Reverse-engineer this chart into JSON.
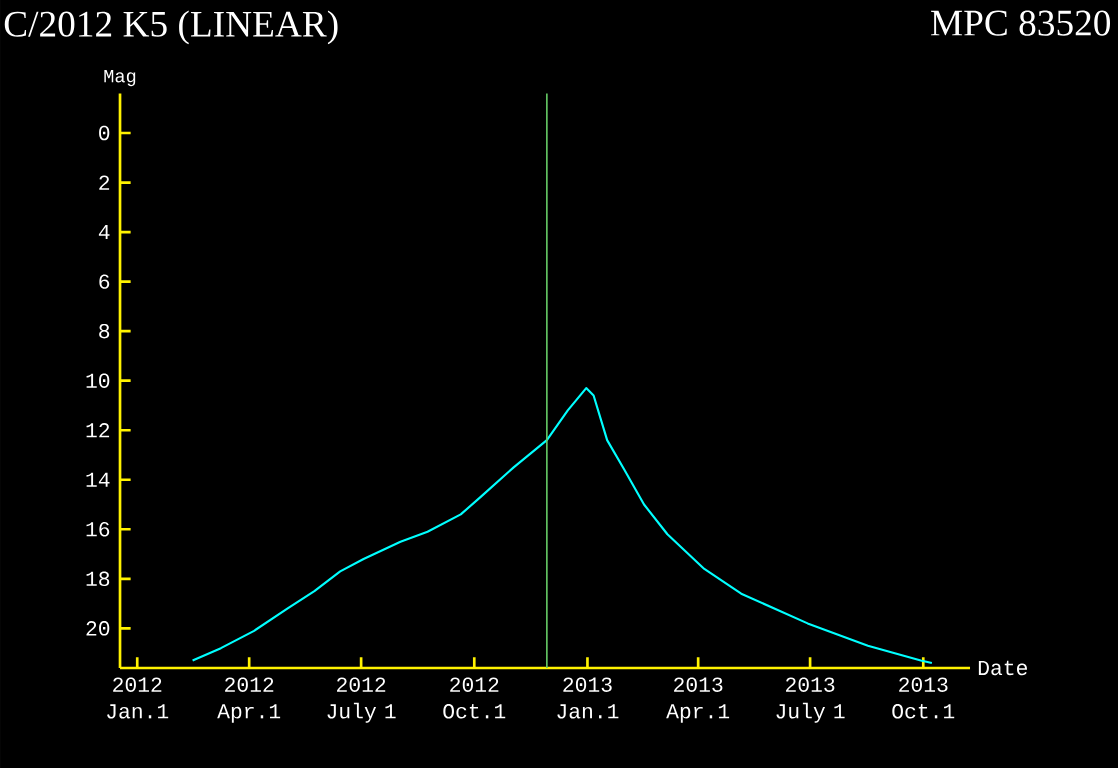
{
  "chart_data": {
    "type": "line",
    "title": "C/2012 K5 (LINEAR)",
    "subtitle": "MPC 83520",
    "xlabel": "Date",
    "ylabel": "Mag",
    "x": [
      "2012-02-15",
      "2012-03-09",
      "2012-04-05",
      "2012-05-02",
      "2012-05-24",
      "2012-06-14",
      "2012-07-03",
      "2012-08-02",
      "2012-08-24",
      "2012-09-20",
      "2012-10-06",
      "2012-11-02",
      "2012-11-29",
      "2012-12-16",
      "2012-12-31",
      "2013-01-06",
      "2013-01-17",
      "2013-01-31",
      "2013-02-16",
      "2013-03-07",
      "2013-04-06",
      "2013-05-06",
      "2013-06-29",
      "2013-08-17",
      "2013-09-29",
      "2013-10-08"
    ],
    "series": [
      {
        "color": "#00ffff",
        "values": [
          21.3,
          20.8,
          20.1,
          19.2,
          18.5,
          17.7,
          17.2,
          16.5,
          16.1,
          15.4,
          14.7,
          13.5,
          12.4,
          11.2,
          10.3,
          10.6,
          12.4,
          13.6,
          15.0,
          16.2,
          17.6,
          18.6,
          19.8,
          20.7,
          21.3,
          21.4
        ]
      }
    ],
    "xlim": [
      "2011-12-18",
      "2013-11-08"
    ],
    "xticks": [
      {
        "value": "2012-01-01",
        "label": "2012 Jan.1"
      },
      {
        "value": "2012-04-01",
        "label": "2012 Apr.1"
      },
      {
        "value": "2012-07-01",
        "label": "2012 July 1"
      },
      {
        "value": "2012-10-01",
        "label": "2012 Oct.1"
      },
      {
        "value": "2013-01-01",
        "label": "2013 Jan.1"
      },
      {
        "value": "2013-04-01",
        "label": "2013 Apr.1"
      },
      {
        "value": "2013-07-01",
        "label": "2013 July 1"
      },
      {
        "value": "2013-10-01",
        "label": "2013 Oct.1"
      }
    ],
    "ylim": [
      21.6,
      -1.6
    ],
    "yticks": [
      0,
      2,
      4,
      6,
      8,
      10,
      12,
      14,
      16,
      18,
      20
    ],
    "ref_lines": [
      {
        "axis": "x",
        "value": "2012-11-29",
        "color": "#66cc66"
      }
    ]
  }
}
